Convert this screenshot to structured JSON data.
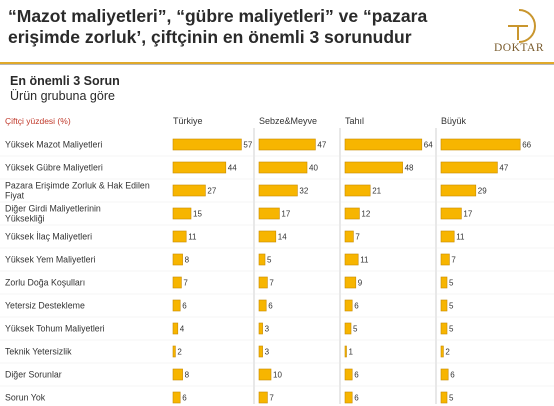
{
  "header": {
    "title": "“Mazot maliyetleri”, “gübre maliyetleri” ve “pazara erişimde zorluk’, çiftçinin en önemli 3 sorunudur",
    "logo_text": "DOKTAR"
  },
  "subtitle": {
    "line1": "En önemli 3 Sorun",
    "line2": "Ürün grubuna göre"
  },
  "colors": {
    "bar": "#f7b500",
    "bar_edge": "#c98a00",
    "accent_rule": "#e0a92a"
  },
  "chart_data": {
    "type": "bar",
    "orientation": "horizontal",
    "y_header": "Çiftçi yüzdesi (%)",
    "categories": [
      "Yüksek Mazot Maliyetleri",
      "Yüksek Gübre Maliyetleri",
      "Pazara Erişimde Zorluk & Hak Edilen Fiyat",
      "Diğer Girdi Maliyetlerinin Yüksekliği",
      "Yüksek İlaç Maliyetleri",
      "Yüksek Yem Maliyetleri",
      "Zorlu Doğa Koşulları",
      "Yetersiz Destekleme",
      "Yüksek Tohum Maliyetleri",
      "Teknik Yetersizlik",
      "Diğer Sorunlar",
      "Sorun Yok"
    ],
    "series": [
      {
        "name": "Türkiye",
        "values": [
          57,
          44,
          27,
          15,
          11,
          8,
          7,
          6,
          4,
          2,
          8,
          6
        ]
      },
      {
        "name": "Sebze&Meyve",
        "values": [
          47,
          40,
          32,
          17,
          14,
          5,
          7,
          6,
          3,
          3,
          10,
          7
        ]
      },
      {
        "name": "Tahıl",
        "values": [
          64,
          48,
          21,
          12,
          7,
          11,
          9,
          6,
          5,
          1,
          6,
          6
        ]
      },
      {
        "name": "Büyük",
        "values": [
          66,
          47,
          29,
          17,
          11,
          7,
          5,
          5,
          5,
          2,
          6,
          5
        ]
      }
    ],
    "xlim": [
      0,
      100
    ]
  }
}
